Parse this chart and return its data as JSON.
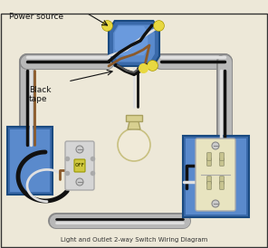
{
  "bg_color": "#ede8d8",
  "border_color": "#333333",
  "power_source_label": "Power source",
  "black_tape_label": "Black\ntape",
  "wire_black": "#111111",
  "wire_white": "#e0e0e0",
  "wire_brown": "#8B5A2B",
  "wire_yellow_tip": "#e8d840",
  "box_blue_dark": "#3a6aaa",
  "box_blue_mid": "#5a8acc",
  "box_blue_light": "#7aaaee",
  "conduit_gray": "#b8b8b8",
  "conduit_edge": "#888888",
  "switch_body": "#d5d5d5",
  "switch_toggle": "#d0c840",
  "outlet_body": "#e8e4c0",
  "bulb_globe": "#f0ead8",
  "bulb_socket": "#d8d090"
}
